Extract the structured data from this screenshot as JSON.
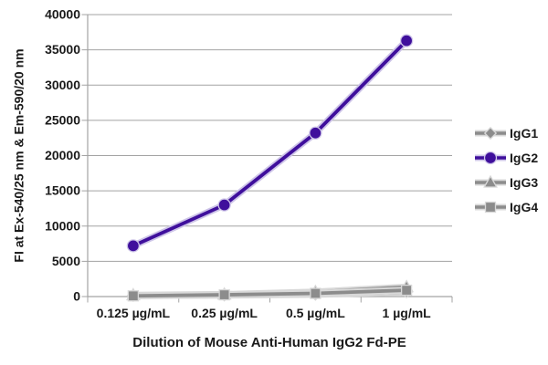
{
  "chart_data": {
    "type": "line",
    "categories": [
      "0.125 µg/mL",
      "0.25 µg/mL",
      "0.5 µg/mL",
      "1 µg/mL"
    ],
    "series": [
      {
        "name": "IgG1",
        "marker": "diamond",
        "color": "#8c8c8c",
        "halo": "#d8d8d8",
        "values": [
          150,
          200,
          300,
          650
        ]
      },
      {
        "name": "IgG2",
        "marker": "circle",
        "color": "#3f0f9c",
        "halo": "#cdc4e8",
        "values": [
          7200,
          13000,
          23200,
          36300
        ]
      },
      {
        "name": "IgG3",
        "marker": "triangle",
        "color": "#8c8c8c",
        "halo": "#d8d8d8",
        "values": [
          200,
          300,
          650,
          1350
        ]
      },
      {
        "name": "IgG4",
        "marker": "square",
        "color": "#8c8c8c",
        "halo": "#d8d8d8",
        "values": [
          100,
          250,
          450,
          900
        ]
      }
    ],
    "xlabel": "Dilution of Mouse Anti-Human IgG2 Fd-PE",
    "ylabel": "FI at Ex-540/25 nm & Em-590/20 nm",
    "ylim": [
      0,
      40000
    ],
    "ytick_step": 5000,
    "ytick_labels": [
      "0",
      "5000",
      "10000",
      "15000",
      "20000",
      "25000",
      "30000",
      "35000",
      "40000"
    ],
    "grid": true,
    "legend_position": "right",
    "grid_color": "#a3a3a3",
    "axis_color": "#a3a3a3",
    "text_color": "#1a1a1a",
    "background_color": "#ffffff"
  }
}
